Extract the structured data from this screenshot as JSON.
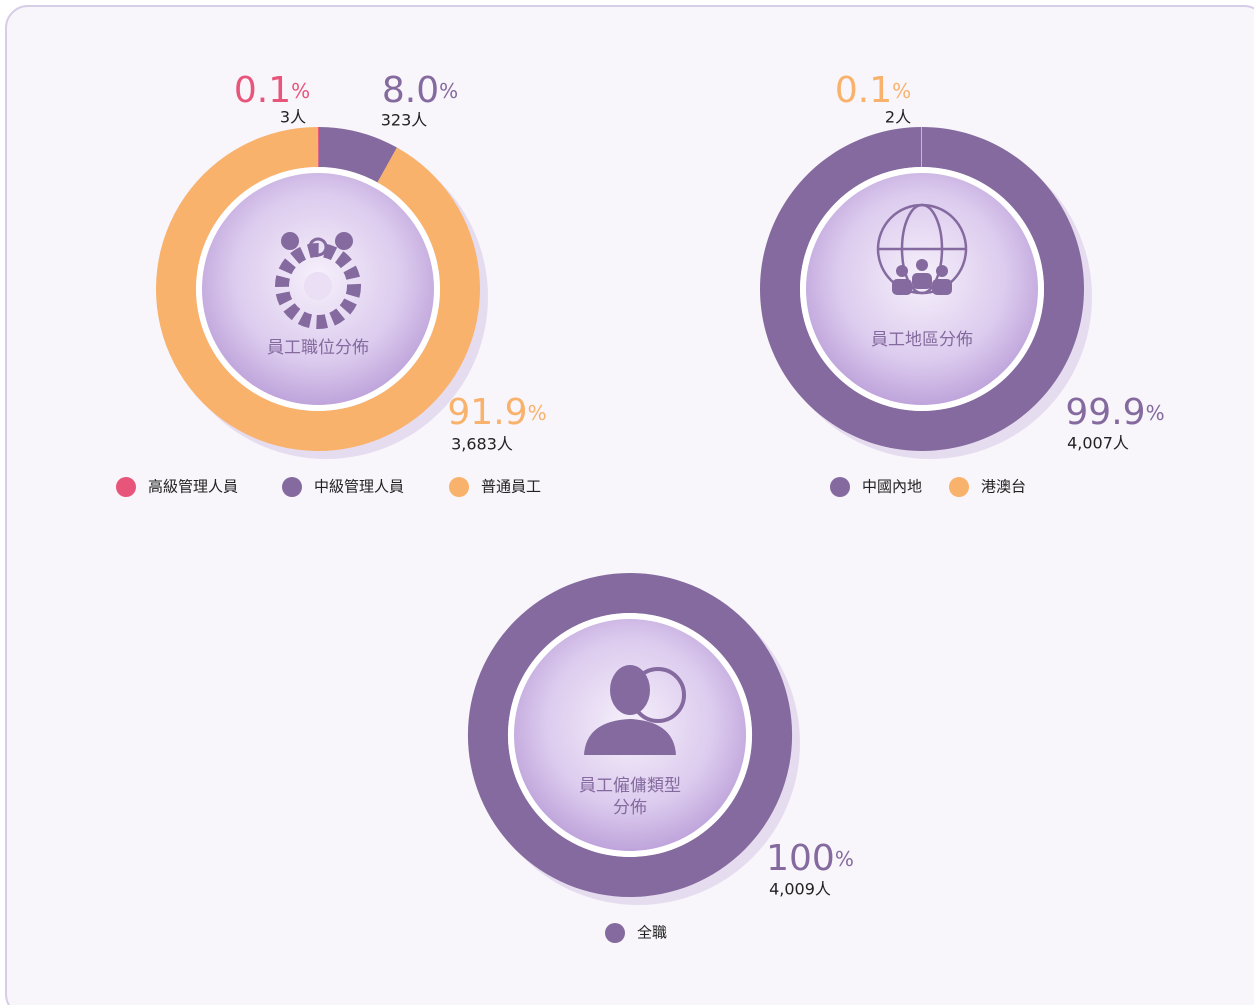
{
  "chart_data": [
    {
      "type": "donut",
      "title": [
        "員工職位分佈"
      ],
      "categories": [
        "高級管理人員",
        "中級管理人員",
        "普通員工"
      ],
      "colors": [
        "#e8557a",
        "#846a9e",
        "#f8b26c"
      ],
      "values": [
        0.1,
        8.0,
        91.9
      ],
      "value_labels": [
        "0.1",
        "8.0",
        "91.9"
      ],
      "unit": "%",
      "count_labels": [
        "3人",
        "323人",
        "3,683人"
      ]
    },
    {
      "type": "donut",
      "title": [
        "員工地區分佈"
      ],
      "categories": [
        "中國內地",
        "港澳台"
      ],
      "colors": [
        "#846a9e",
        "#f8b26c"
      ],
      "values": [
        99.9,
        0.1
      ],
      "value_labels": [
        "99.9",
        "0.1"
      ],
      "unit": "%",
      "count_labels": [
        "4,007人",
        "2人"
      ]
    },
    {
      "type": "donut",
      "title": [
        "員工僱傭類型",
        "分佈"
      ],
      "categories": [
        "全職"
      ],
      "colors": [
        "#846a9e"
      ],
      "values": [
        100
      ],
      "value_labels": [
        "100"
      ],
      "unit": "%",
      "count_labels": [
        "4,009人"
      ]
    }
  ]
}
